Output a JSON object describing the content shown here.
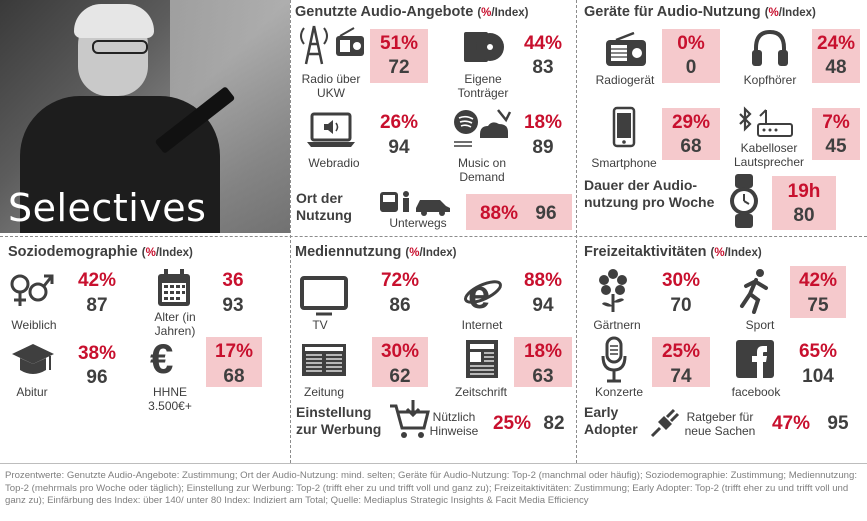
{
  "photo": {
    "label": "Selectives"
  },
  "audio_offers": {
    "title": "Genutzte Audio-Angebote",
    "unit_pct": "%",
    "unit_idx": "/Index)",
    "unit_open": "(",
    "items": [
      {
        "label": "Radio über UKW",
        "pct": "51%",
        "idx": "72",
        "icon": "radio-tower-icon"
      },
      {
        "label": "Eigene Tonträger",
        "pct": "44%",
        "idx": "83",
        "icon": "cd-icon"
      },
      {
        "label": "Webradio",
        "pct": "26%",
        "idx": "94",
        "icon": "laptop-speaker-icon"
      },
      {
        "label": "Music on Demand",
        "pct": "18%",
        "idx": "89",
        "icon": "streaming-icon"
      }
    ],
    "place": {
      "title": "Ort der Nutzung",
      "label": "Unterwegs",
      "pct": "88%",
      "idx": "96",
      "icon": "travel-icon"
    }
  },
  "devices": {
    "title": "Geräte für Audio-Nutzung",
    "items": [
      {
        "label": "Radiogerät",
        "pct": "0%",
        "idx": "0",
        "icon": "radio-icon"
      },
      {
        "label": "Kopfhörer",
        "pct": "24%",
        "idx": "48",
        "icon": "headphones-icon"
      },
      {
        "label": "Smartphone",
        "pct": "29%",
        "idx": "68",
        "icon": "smartphone-icon"
      },
      {
        "label": "Kabelloser Lautsprecher",
        "pct": "7%",
        "idx": "45",
        "icon": "bluetooth-speaker-icon"
      }
    ],
    "duration": {
      "title": "Dauer der Audio-nutzung pro Woche",
      "value": "19h",
      "idx": "80",
      "icon": "watch-icon"
    }
  },
  "socio": {
    "title": "Soziodemographie",
    "items": [
      {
        "label": "Weiblich",
        "pct": "42%",
        "idx": "87",
        "icon": "gender-icon"
      },
      {
        "label": "Alter (in Jahren)",
        "pct": "36",
        "idx": "93",
        "icon": "calendar-icon"
      },
      {
        "label": "Abitur",
        "pct": "38%",
        "idx": "96",
        "icon": "graduation-cap-icon"
      },
      {
        "label": "HHNE 3.500€+",
        "pct": "17%",
        "idx": "68",
        "icon": "euro-icon"
      }
    ]
  },
  "media": {
    "title": "Mediennutzung",
    "items": [
      {
        "label": "TV",
        "pct": "72%",
        "idx": "86",
        "icon": "tv-icon"
      },
      {
        "label": "Internet",
        "pct": "88%",
        "idx": "94",
        "icon": "internet-explorer-icon"
      },
      {
        "label": "Zeitung",
        "pct": "30%",
        "idx": "62",
        "icon": "newspaper-icon"
      },
      {
        "label": "Zeitschrift",
        "pct": "18%",
        "idx": "63",
        "icon": "magazine-icon"
      }
    ],
    "ad": {
      "title": "Einstellung zur Werbung",
      "label": "Nützlich Hinweise",
      "pct": "25%",
      "idx": "82",
      "icon": "shopping-cart-icon"
    }
  },
  "leisure": {
    "title": "Freizeitaktivitäten",
    "items": [
      {
        "label": "Gärtnern",
        "pct": "30%",
        "idx": "70",
        "icon": "flower-icon"
      },
      {
        "label": "Sport",
        "pct": "42%",
        "idx": "75",
        "icon": "runner-icon"
      },
      {
        "label": "Konzerte",
        "pct": "25%",
        "idx": "74",
        "icon": "microphone-icon"
      },
      {
        "label": "facebook",
        "pct": "65%",
        "idx": "104",
        "icon": "facebook-icon"
      }
    ],
    "adopter": {
      "title": "Early Adopter",
      "label": "Ratgeber für neue Sachen",
      "pct": "47%",
      "idx": "95",
      "icon": "plug-icon"
    }
  },
  "footnote": "Prozentwerte: Genutzte Audio-Angebote: Zustimmung; Ort der Audio-Nutzung: mind. selten; Geräte für Audio-Nutzung: Top-2 (manchmal oder häufig); Soziodemographie: Zustimmung; Mediennutzung: Top-2 (mehrmals pro Woche oder täglich); Einstellung zur Werbung: Top-2 (trifft eher zu und trifft voll und ganz zu); Freizeitaktivitäten: Zustimmung; Early Adopter: Top-2 (trifft eher zu und trifft voll und ganz zu); Einfärbung des Index: über 140/ unter 80 Index: Indiziert am Total; Quelle: Mediaplus Strategic Insights & Facit Media Efficiency",
  "colors": {
    "accent": "#c8102e",
    "highlight": "#f5c9cc",
    "text": "#3f3f3f"
  }
}
